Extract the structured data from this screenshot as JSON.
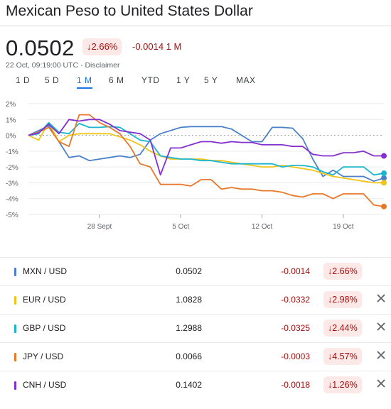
{
  "header": {
    "title": "Mexican Peso to United States Dollar",
    "price": "0.0502",
    "change_pct": "2.66%",
    "change_abs": "-0.0014 1 M",
    "timestamp": "22 Oct, 09:19:00 UTC · Disclaimer"
  },
  "tabs": [
    {
      "label": "1 D",
      "active": false
    },
    {
      "label": "5 D",
      "active": false
    },
    {
      "label": "1 M",
      "active": true
    },
    {
      "label": "6 M",
      "active": false
    },
    {
      "label": "YTD",
      "active": false
    },
    {
      "label": "1 Y",
      "active": false
    },
    {
      "label": "5 Y",
      "active": false
    },
    {
      "label": "MAX",
      "active": false
    }
  ],
  "chart_data": {
    "type": "line",
    "ylim": [
      -5,
      2
    ],
    "y_ticks": [
      "2%",
      "1%",
      "0%",
      "-1%",
      "-2%",
      "-3%",
      "-4%",
      "-5%"
    ],
    "x_ticks": [
      "28 Sept",
      "5 Oct",
      "12 Oct",
      "19 Oct"
    ],
    "grid": true,
    "series": [
      {
        "name": "MXN / USD",
        "color": "#4c81c8",
        "values": [
          0,
          0.3,
          0.6,
          -0.4,
          -1.4,
          -1.3,
          -1.6,
          -1.5,
          -1.4,
          -1.3,
          -1.4,
          -1.2,
          -0.3,
          0.1,
          0.3,
          0.5,
          0.55,
          0.55,
          0.55,
          0.55,
          0.4,
          0,
          -0.4,
          -0.4,
          0.5,
          0.5,
          0.45,
          -0.2,
          -1.5,
          -2.6,
          -2.2,
          -2.6,
          -2.6,
          -2.6,
          -2.9,
          -2.7
        ]
      },
      {
        "name": "EUR / USD",
        "color": "#f2c318",
        "values": [
          0,
          -0.3,
          0.8,
          -0.4,
          0,
          0.1,
          0.1,
          0.1,
          0.1,
          -0.1,
          -0.3,
          -0.6,
          -1.0,
          -1.3,
          -1.5,
          -1.5,
          -1.5,
          -1.5,
          -1.6,
          -1.6,
          -1.7,
          -1.8,
          -1.9,
          -2.0,
          -2.0,
          -1.9,
          -2.0,
          -2.1,
          -2.2,
          -2.4,
          -2.6,
          -2.7,
          -2.8,
          -2.9,
          -3.0,
          -3.0
        ]
      },
      {
        "name": "GBP / USD",
        "color": "#1ab6cf",
        "values": [
          0,
          0.1,
          0.8,
          0.2,
          0.1,
          0.75,
          0.5,
          0.5,
          0.55,
          0.5,
          0.1,
          -0.3,
          -0.4,
          -1.3,
          -1.4,
          -1.5,
          -1.5,
          -1.6,
          -1.6,
          -1.7,
          -1.8,
          -1.8,
          -1.8,
          -1.8,
          -1.8,
          -2.0,
          -1.9,
          -1.9,
          -2.0,
          -2.3,
          -2.5,
          -2.0,
          -2.0,
          -2.0,
          -2.5,
          -2.4
        ]
      },
      {
        "name": "JPY / USD",
        "color": "#e8782a",
        "values": [
          0,
          0.2,
          0.5,
          -0.4,
          -0.7,
          1.3,
          1.3,
          0.8,
          0.5,
          0.1,
          -0.7,
          -1.8,
          -2.0,
          -3.1,
          -3.1,
          -3.1,
          -3.2,
          -2.8,
          -2.8,
          -3.4,
          -3.3,
          -3.4,
          -3.4,
          -3.5,
          -3.5,
          -3.6,
          -3.8,
          -3.9,
          -3.7,
          -3.7,
          -4.0,
          -3.7,
          -3.7,
          -3.7,
          -4.4,
          -4.5
        ]
      },
      {
        "name": "CNH / USD",
        "color": "#8430ce",
        "values": [
          0,
          0.15,
          0.7,
          0.1,
          1.0,
          0.9,
          1.0,
          1.0,
          0.7,
          0.3,
          0.2,
          0.1,
          -0.3,
          -2.5,
          -0.8,
          -0.8,
          -0.6,
          -0.4,
          -0.4,
          -0.5,
          -0.4,
          -0.45,
          -0.45,
          -0.6,
          -0.6,
          -0.6,
          -0.7,
          -0.7,
          -1.2,
          -1.3,
          -1.3,
          -1.1,
          -1.1,
          -1.0,
          -1.3,
          -1.3
        ]
      }
    ]
  },
  "rows": [
    {
      "pair": "MXN / USD",
      "color": "#4c81c8",
      "value": "0.0502",
      "change": "-0.0014",
      "pct": "2.66%",
      "removable": false
    },
    {
      "pair": "EUR / USD",
      "color": "#f2c318",
      "value": "1.0828",
      "change": "-0.0332",
      "pct": "2.98%",
      "removable": true
    },
    {
      "pair": "GBP / USD",
      "color": "#1ab6cf",
      "value": "1.2988",
      "change": "-0.0325",
      "pct": "2.44%",
      "removable": true
    },
    {
      "pair": "JPY / USD",
      "color": "#e8782a",
      "value": "0.0066",
      "change": "-0.0003",
      "pct": "4.57%",
      "removable": true
    },
    {
      "pair": "CNH / USD",
      "color": "#8430ce",
      "value": "0.1402",
      "change": "-0.0018",
      "pct": "1.26%",
      "removable": true
    }
  ],
  "icons": {
    "down_arrow": "arrow-down-icon",
    "close": "close-icon"
  },
  "colors": {
    "negative": "#a50e0e",
    "negative_bg": "#fce8e6",
    "accent": "#1a73e8"
  }
}
